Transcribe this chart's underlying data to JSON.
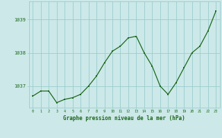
{
  "x": [
    0,
    1,
    2,
    3,
    4,
    5,
    6,
    7,
    8,
    9,
    10,
    11,
    12,
    13,
    14,
    15,
    16,
    17,
    18,
    19,
    20,
    21,
    22,
    23
  ],
  "y": [
    1036.7,
    1036.85,
    1036.85,
    1036.5,
    1036.6,
    1036.65,
    1036.75,
    1037.0,
    1037.3,
    1037.7,
    1038.05,
    1038.2,
    1038.45,
    1038.5,
    1038.0,
    1037.6,
    1037.0,
    1036.75,
    1037.1,
    1037.55,
    1038.0,
    1038.2,
    1038.65,
    1039.25
  ],
  "line_color": "#1a6618",
  "marker_color": "#1a6618",
  "bg_color": "#cce8e8",
  "grid_color": "#99cccc",
  "xlabel": "Graphe pression niveau de la mer (hPa)",
  "xlabel_color": "#1a6618",
  "tick_label_color": "#1a6618",
  "ytick_labels": [
    "1037",
    "1038",
    "1039"
  ],
  "ytick_values": [
    1037,
    1038,
    1039
  ],
  "ylim": [
    1036.35,
    1039.55
  ],
  "xlim": [
    -0.5,
    23.5
  ]
}
